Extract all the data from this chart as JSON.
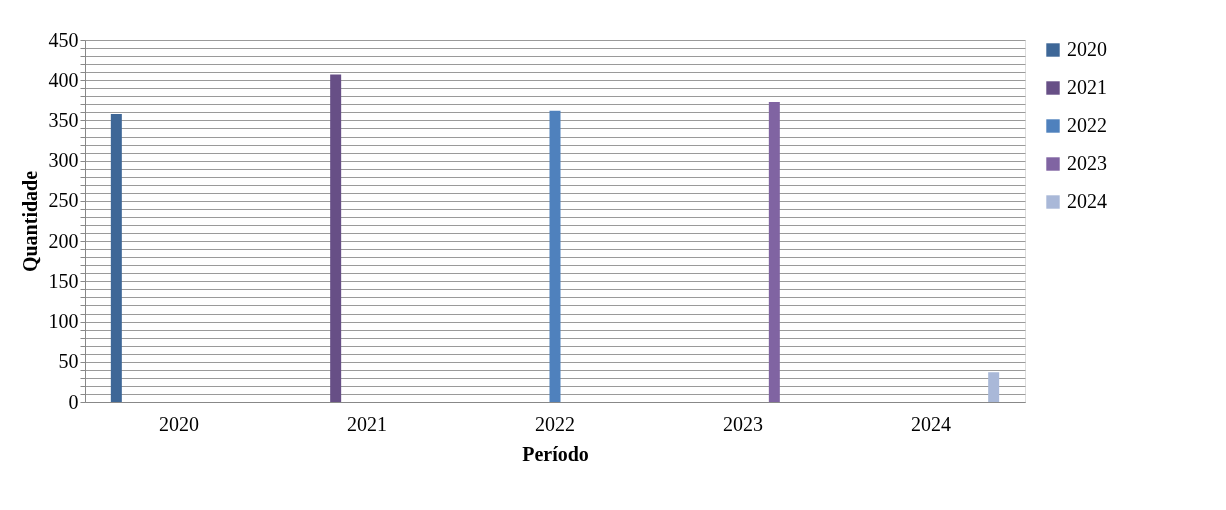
{
  "chart_data": {
    "type": "bar",
    "xlabel": "Período",
    "ylabel": "Quantidade",
    "categories": [
      "2020",
      "2021",
      "2022",
      "2023",
      "2024"
    ],
    "series": [
      {
        "name": "2020",
        "color": "#3e6797",
        "values": [
          358,
          null,
          null,
          null,
          null
        ]
      },
      {
        "name": "2021",
        "color": "#674f86",
        "values": [
          null,
          407,
          null,
          null,
          null
        ]
      },
      {
        "name": "2022",
        "color": "#4f81bd",
        "values": [
          null,
          null,
          362,
          null,
          null
        ]
      },
      {
        "name": "2023",
        "color": "#8064a2",
        "values": [
          null,
          null,
          null,
          373,
          null
        ]
      },
      {
        "name": "2024",
        "color": "#a9b8d8",
        "values": [
          null,
          null,
          null,
          null,
          37
        ]
      }
    ],
    "ylim": [
      0,
      450
    ],
    "yticks": [
      0,
      {
        "value": 10,
        "label": null
      },
      {
        "value": 20,
        "label": null
      },
      {
        "value": 30,
        "label": null
      },
      {
        "value": 40,
        "label": null
      },
      50,
      {
        "value": 60,
        "label": null
      },
      {
        "value": 70,
        "label": null
      },
      {
        "value": 80,
        "label": null
      },
      {
        "value": 90,
        "label": null
      },
      100,
      {
        "value": 110,
        "label": null
      },
      {
        "value": 120,
        "label": null
      },
      {
        "value": 130,
        "label": null
      },
      {
        "value": 140,
        "label": null
      },
      150,
      {
        "value": 160,
        "label": null
      },
      {
        "value": 170,
        "label": null
      },
      {
        "value": 180,
        "label": null
      },
      {
        "value": 190,
        "label": null
      },
      200,
      {
        "value": 210,
        "label": null
      },
      {
        "value": 220,
        "label": null
      },
      {
        "value": 230,
        "label": null
      },
      {
        "value": 240,
        "label": null
      },
      250,
      {
        "value": 260,
        "label": null
      },
      {
        "value": 270,
        "label": null
      },
      {
        "value": 280,
        "label": null
      },
      {
        "value": 290,
        "label": null
      },
      300,
      {
        "value": 310,
        "label": null
      },
      {
        "value": 320,
        "label": null
      },
      {
        "value": 330,
        "label": null
      },
      {
        "value": 340,
        "label": null
      },
      350,
      {
        "value": 360,
        "label": null
      },
      {
        "value": 370,
        "label": null
      },
      {
        "value": 380,
        "label": null
      },
      {
        "value": 390,
        "label": null
      },
      400,
      {
        "value": 410,
        "label": null
      },
      {
        "value": 420,
        "label": null
      },
      {
        "value": 430,
        "label": null
      },
      {
        "value": 440,
        "label": null
      },
      450
    ],
    "grid": "y",
    "legend": "right"
  }
}
